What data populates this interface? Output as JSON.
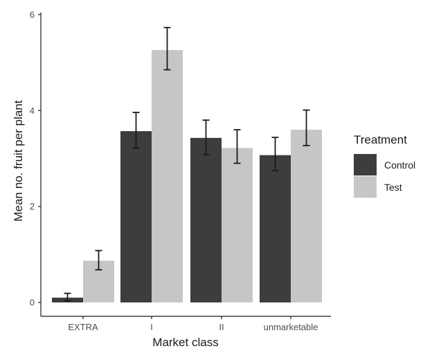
{
  "chart_data": {
    "type": "bar",
    "xlabel": "Market class",
    "ylabel": "Mean no. fruit per plant",
    "categories": [
      "EXTRA",
      "I",
      "II",
      "unmarketable"
    ],
    "ylim": [
      0,
      6
    ],
    "yticks": [
      "0",
      "2",
      "4",
      "6"
    ],
    "grid": false,
    "legend": {
      "title": "Treatment",
      "position": "right"
    },
    "series": [
      {
        "name": "Control",
        "color": "#3d3d3d",
        "values": [
          0.1,
          3.57,
          3.43,
          3.07
        ],
        "err_low": [
          0.03,
          3.22,
          3.08,
          2.75
        ],
        "err_high": [
          0.19,
          3.96,
          3.8,
          3.44
        ]
      },
      {
        "name": "Test",
        "color": "#c6c6c6",
        "values": [
          0.87,
          5.26,
          3.22,
          3.6
        ],
        "err_low": [
          0.68,
          4.85,
          2.9,
          3.27
        ],
        "err_high": [
          1.08,
          5.73,
          3.6,
          4.01
        ]
      }
    ]
  }
}
